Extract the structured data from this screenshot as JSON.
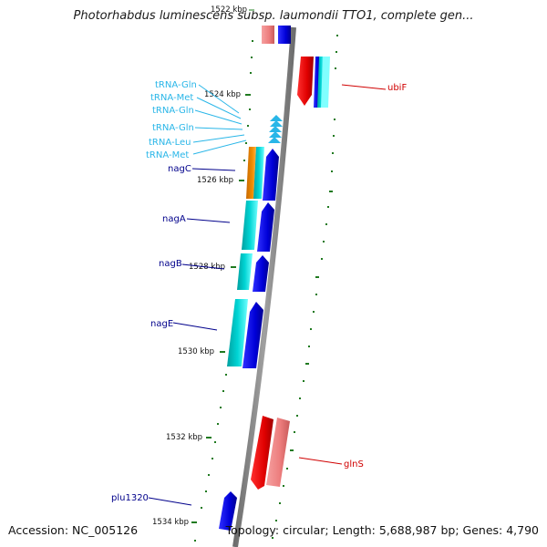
{
  "title": "Photorhabdus luminescens subsp. laumondii TTO1, complete gen...",
  "footer": {
    "accession": "Accession: NC_005126",
    "summary": "Topology: circular; Length: 5,688,987 bp; Genes: 4,790"
  },
  "ticks": [
    {
      "label": "1522 kbp",
      "faded": true
    },
    {
      "label": "1524 kbp"
    },
    {
      "label": "1526 kbp"
    },
    {
      "label": "1528 kbp"
    },
    {
      "label": "1530 kbp"
    },
    {
      "label": "1532 kbp"
    },
    {
      "label": "1534 kbp"
    }
  ],
  "genes": [
    {
      "label": "ubiF",
      "color": "#d00000"
    },
    {
      "label": "glnS",
      "color": "#d00000"
    },
    {
      "label": "nagC",
      "color": "#00008b"
    },
    {
      "label": "nagA",
      "color": "#00008b"
    },
    {
      "label": "nagB",
      "color": "#00008b"
    },
    {
      "label": "nagE",
      "color": "#00008b"
    },
    {
      "label": "plu1320",
      "color": "#00008b"
    }
  ],
  "trnas": [
    {
      "label": "tRNA-Gln"
    },
    {
      "label": "tRNA-Met"
    },
    {
      "label": "tRNA-Gln"
    },
    {
      "label": "tRNA-Gln"
    },
    {
      "label": "tRNA-Leu"
    },
    {
      "label": "tRNA-Met"
    }
  ],
  "colors": {
    "trna": "#29b6e8",
    "forward_cds": "#0000e0",
    "reverse_cds": "#e00000",
    "reverse_light": "#f08080",
    "rna": "#00c8c8",
    "orange": "#f08c00",
    "backbone": "#8c8c8c",
    "tick": "#207a20"
  }
}
